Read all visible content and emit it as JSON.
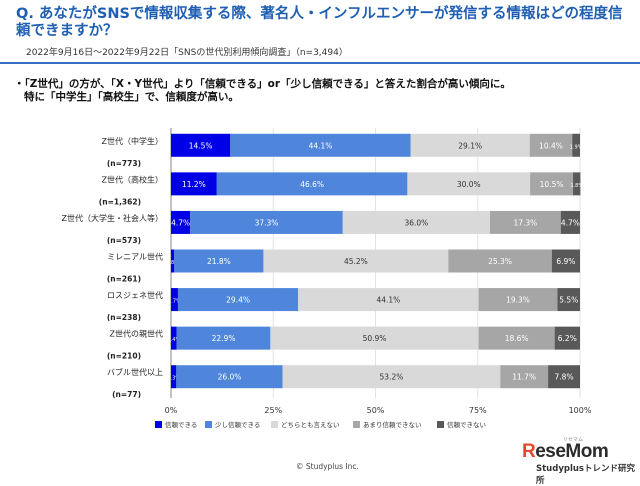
{
  "header": {
    "question": "Q. あなたがSNSで情報収集する際、著名人・インフルエンサーが発信する情報はどの程度信頼できますか？",
    "survey_info": "2022年9月16日～2022年9月22日「SNSの世代別利用傾向調査」（n=3,494）"
  },
  "summary": {
    "line1": "・「Z世代」の方が、「X・Y世代」より「信頼できる」or「少し信頼できる」と答えた割合が高い傾向に。",
    "line2": "特に「中学生」「高校生」で、信頼度が高い。"
  },
  "footer": {
    "copyright": "© Studyplus Inc.",
    "logo": "ReseMom",
    "logo_small": "リセマム",
    "credit": "Studyplusトレンド研究所"
  },
  "chart_data": {
    "type": "bar",
    "orientation": "horizontal-stacked-100",
    "categories": [
      {
        "label": "Z世代（中学生）",
        "n": "(n=773)"
      },
      {
        "label": "Z世代（高校生）",
        "n": "(n=1,362)"
      },
      {
        "label": "Z世代（大学生・社会人等）",
        "n": "(n=573)"
      },
      {
        "label": "ミレニアル世代",
        "n": "(n=261)"
      },
      {
        "label": "ロスジェネ世代",
        "n": "(n=238)"
      },
      {
        "label": "Z世代の親世代",
        "n": "(n=210)"
      },
      {
        "label": "バブル世代以上",
        "n": "(n=77)"
      }
    ],
    "series": [
      {
        "name": "信頼できる",
        "color": "#0000e6",
        "values": [
          14.5,
          11.2,
          4.7,
          0.8,
          1.7,
          1.4,
          1.3
        ],
        "labels": [
          "14.5%",
          "11.2%",
          "4.7%",
          "0.8%",
          "1.7%",
          "1.4%",
          "1.3%"
        ]
      },
      {
        "name": "少し信頼できる",
        "color": "#4f86dc",
        "values": [
          44.1,
          46.6,
          37.3,
          21.8,
          29.4,
          22.9,
          26.0
        ],
        "labels": [
          "44.1%",
          "46.6%",
          "37.3%",
          "21.8%",
          "29.4%",
          "22.9%",
          "26.0%"
        ]
      },
      {
        "name": "どちらとも言えない",
        "color": "#d9d9d9",
        "values": [
          29.1,
          30.0,
          36.0,
          45.2,
          44.1,
          50.9,
          53.2
        ],
        "labels": [
          "29.1%",
          "30.0%",
          "36.0%",
          "45.2%",
          "44.1%",
          "50.9%",
          "53.2%"
        ]
      },
      {
        "name": "あまり信頼できない",
        "color": "#a6a6a6",
        "values": [
          10.4,
          10.5,
          17.3,
          25.3,
          19.3,
          18.6,
          11.7
        ],
        "labels": [
          "10.4%",
          "10.5%",
          "17.3%",
          "25.3%",
          "19.3%",
          "18.6%",
          "11.7%"
        ]
      },
      {
        "name": "信頼できない",
        "color": "#595959",
        "values": [
          1.9,
          1.8,
          4.7,
          6.9,
          5.5,
          6.2,
          7.8
        ],
        "labels": [
          "1.9%",
          "1.8%",
          "4.7%",
          "6.9%",
          "5.5%",
          "6.2%",
          "7.8%"
        ]
      }
    ],
    "xlim": [
      0,
      100
    ],
    "xticks": [
      "0%",
      "25%",
      "50%",
      "75%",
      "100%"
    ],
    "grid": true,
    "legend": "bottom"
  }
}
